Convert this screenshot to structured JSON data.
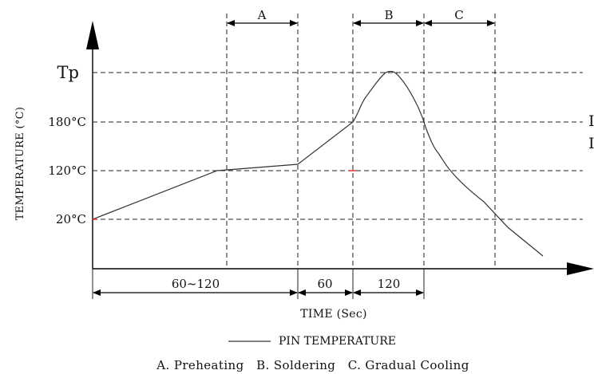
{
  "diagram": {
    "y_axis_title": "TEMPERATURE (°C)",
    "y_ticks": [
      {
        "label": "Tp",
        "value": 250
      },
      {
        "label": "180°C",
        "value": 180
      },
      {
        "label": "120°C",
        "value": 120
      },
      {
        "label": "20°C",
        "value": 20
      }
    ],
    "x_axis_title": "TIME (Sec)",
    "zones": [
      {
        "id": "A",
        "label": "A"
      },
      {
        "id": "B",
        "label": "B"
      },
      {
        "id": "C",
        "label": "C"
      }
    ],
    "intervals": [
      {
        "label": "60~120"
      },
      {
        "label": "60"
      },
      {
        "label": "120"
      }
    ],
    "legend": {
      "label": "PIN TEMPERATURE"
    },
    "caption": "A. Preheating   B. Soldering   C. Gradual Cooling",
    "cropped_side_text": [
      "I",
      "I"
    ],
    "colors": {
      "line": "#333333",
      "grid": "#222222",
      "axis": "#000000",
      "marker": "#e02020"
    }
  }
}
